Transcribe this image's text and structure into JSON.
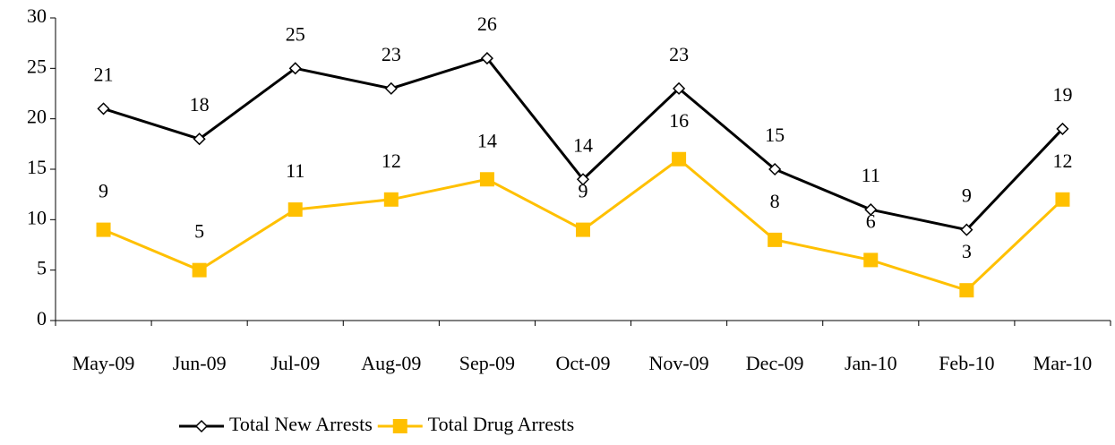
{
  "chart_data": {
    "type": "line",
    "categories": [
      "May-09",
      "Jun-09",
      "Jul-09",
      "Aug-09",
      "Sep-09",
      "Oct-09",
      "Nov-09",
      "Dec-09",
      "Jan-10",
      "Feb-10",
      "Mar-10"
    ],
    "series": [
      {
        "name": "Total New Arrests",
        "color": "#000000",
        "marker": "diamond",
        "values": [
          21,
          18,
          25,
          23,
          26,
          14,
          23,
          15,
          11,
          9,
          19
        ]
      },
      {
        "name": "Total Drug Arrests",
        "color": "#ffc000",
        "marker": "square",
        "values": [
          9,
          5,
          11,
          12,
          14,
          9,
          16,
          8,
          6,
          3,
          12
        ]
      }
    ],
    "ylim": [
      0,
      30
    ],
    "yticks": [
      0,
      5,
      10,
      15,
      20,
      25,
      30
    ],
    "grid": false,
    "legend": "bottom"
  }
}
